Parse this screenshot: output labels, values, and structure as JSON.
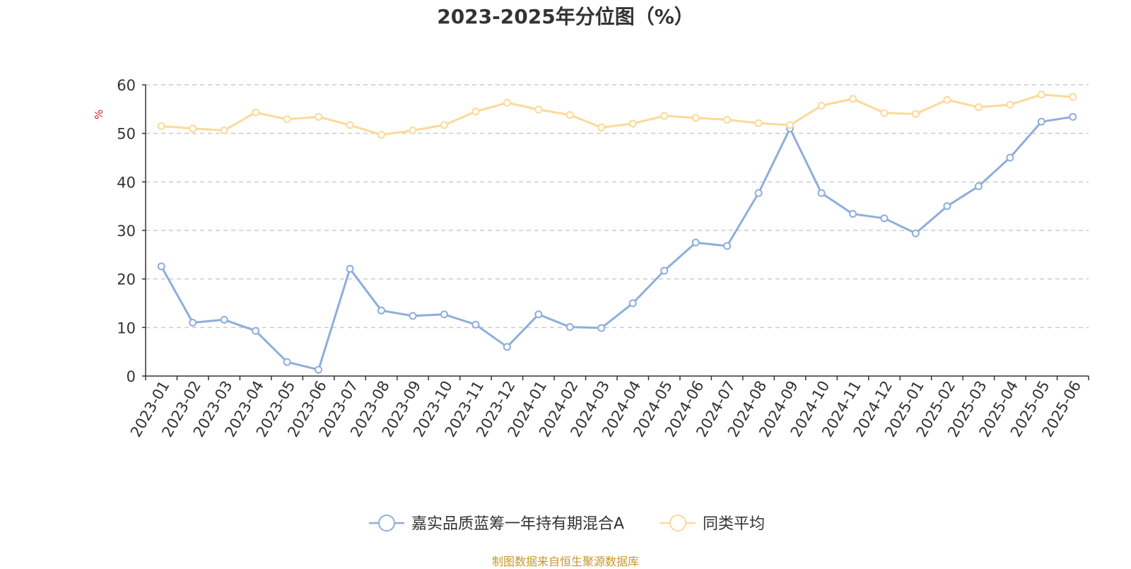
{
  "chart_data": {
    "type": "line",
    "title": "2023-2025年分位图（%）",
    "ylabel": "%",
    "xlabel": "",
    "ylim": [
      0,
      60
    ],
    "yticks": [
      0,
      10,
      20,
      30,
      40,
      50,
      60
    ],
    "grid": "horizontal dashed",
    "legend_position": "bottom-center",
    "categories": [
      "2023-01",
      "2023-02",
      "2023-03",
      "2023-04",
      "2023-05",
      "2023-06",
      "2023-07",
      "2023-08",
      "2023-09",
      "2023-10",
      "2023-11",
      "2023-12",
      "2024-01",
      "2024-02",
      "2024-03",
      "2024-04",
      "2024-05",
      "2024-06",
      "2024-07",
      "2024-08",
      "2024-09",
      "2024-10",
      "2024-11",
      "2024-12",
      "2025-01",
      "2025-02",
      "2025-03",
      "2025-04",
      "2025-05",
      "2025-06"
    ],
    "series": [
      {
        "name": "嘉实品质蓝筹一年持有期混合A",
        "color": "#8eaedb",
        "values": [
          22.6,
          11.0,
          11.6,
          9.3,
          2.9,
          1.3,
          22.1,
          13.5,
          12.4,
          12.7,
          10.6,
          6.0,
          12.7,
          10.1,
          9.9,
          15.0,
          21.7,
          27.5,
          26.8,
          37.7,
          51.0,
          37.7,
          33.4,
          32.5,
          29.4,
          35.0,
          39.1,
          45.0,
          52.4,
          53.4
        ]
      },
      {
        "name": "同类平均",
        "color": "#fcd99a",
        "values": [
          51.5,
          51.0,
          50.6,
          54.3,
          52.9,
          53.4,
          51.7,
          49.7,
          50.6,
          51.7,
          54.5,
          56.3,
          54.9,
          53.8,
          51.2,
          52.0,
          53.6,
          53.2,
          52.8,
          52.1,
          51.7,
          55.7,
          57.1,
          54.2,
          54.0,
          56.9,
          55.4,
          55.9,
          58.0,
          57.5
        ]
      }
    ]
  },
  "footer": {
    "source": "制图数据来自恒生聚源数据库"
  }
}
